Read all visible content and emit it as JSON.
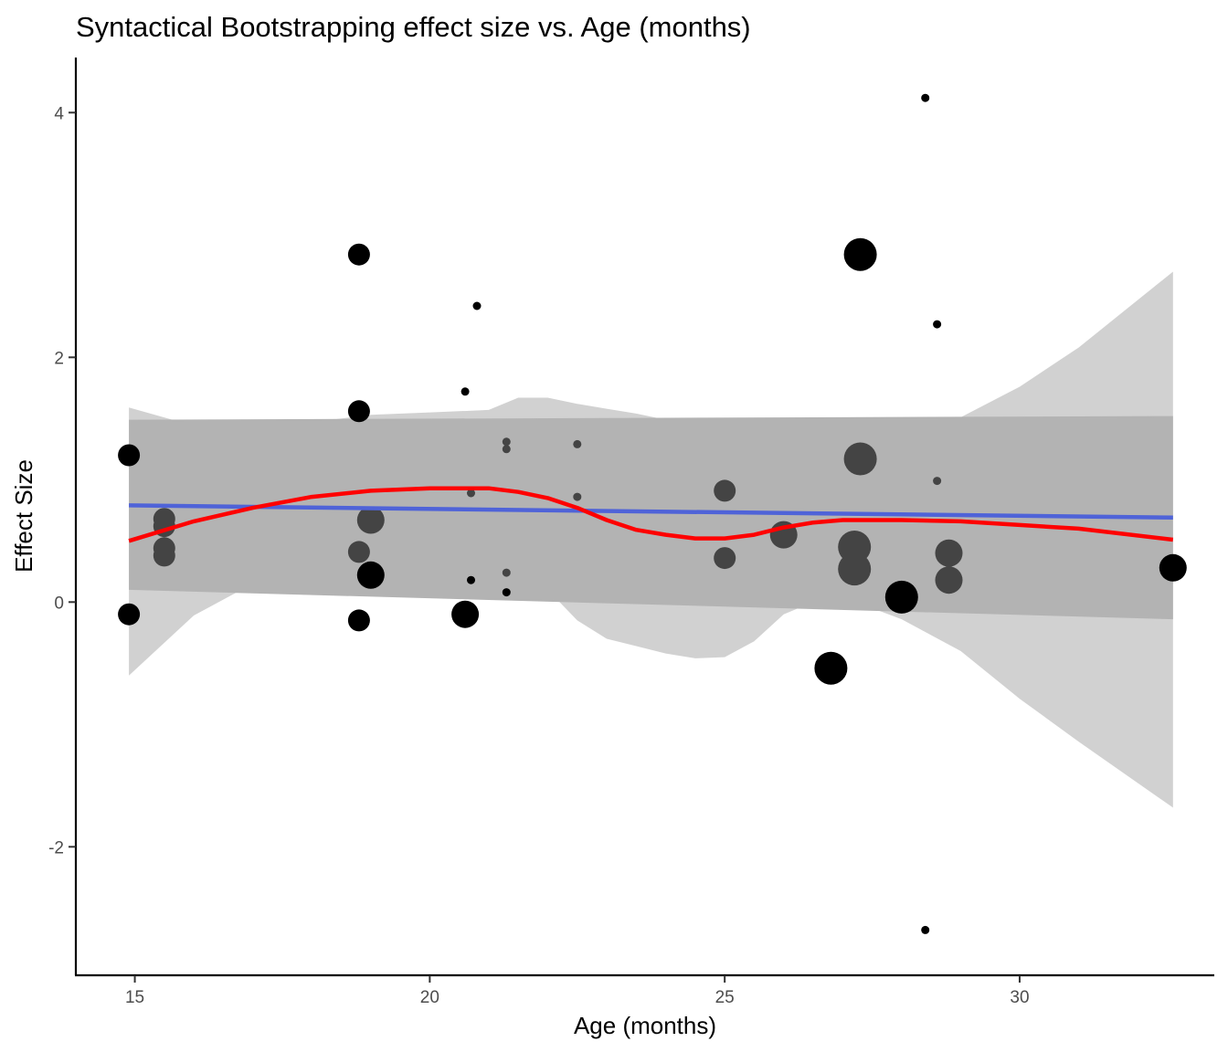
{
  "chart_data": {
    "type": "scatter",
    "title": "Syntactical Bootstrapping effect size vs. Age (months)",
    "xlabel": "Age (months)",
    "ylabel": "Effect Size",
    "xlim": [
      14,
      33.3
    ],
    "ylim": [
      -3.05,
      4.45
    ],
    "x_ticks": [
      15,
      20,
      25,
      30
    ],
    "y_ticks": [
      -2,
      0,
      2,
      4
    ],
    "grid": false,
    "points": [
      {
        "x": 14.9,
        "y": 1.2,
        "size": 3,
        "gray": false
      },
      {
        "x": 14.9,
        "y": -0.1,
        "size": 3,
        "gray": false
      },
      {
        "x": 15.5,
        "y": 0.68,
        "size": 3,
        "gray": true
      },
      {
        "x": 15.5,
        "y": 0.62,
        "size": 3,
        "gray": true
      },
      {
        "x": 15.5,
        "y": 0.44,
        "size": 3,
        "gray": true
      },
      {
        "x": 15.5,
        "y": 0.38,
        "size": 3,
        "gray": true
      },
      {
        "x": 18.8,
        "y": 2.84,
        "size": 3,
        "gray": false
      },
      {
        "x": 18.8,
        "y": 1.56,
        "size": 3,
        "gray": false
      },
      {
        "x": 18.8,
        "y": 0.41,
        "size": 3,
        "gray": true
      },
      {
        "x": 18.8,
        "y": -0.15,
        "size": 3,
        "gray": false
      },
      {
        "x": 19.0,
        "y": 0.67,
        "size": 4,
        "gray": true
      },
      {
        "x": 19.0,
        "y": 0.22,
        "size": 4,
        "gray": false
      },
      {
        "x": 20.6,
        "y": 1.72,
        "size": 1,
        "gray": false
      },
      {
        "x": 20.8,
        "y": 2.42,
        "size": 1,
        "gray": false
      },
      {
        "x": 20.7,
        "y": 0.89,
        "size": 1,
        "gray": true
      },
      {
        "x": 20.7,
        "y": 0.18,
        "size": 1,
        "gray": false
      },
      {
        "x": 20.6,
        "y": -0.1,
        "size": 4,
        "gray": false
      },
      {
        "x": 21.3,
        "y": 1.31,
        "size": 1,
        "gray": true
      },
      {
        "x": 21.3,
        "y": 1.25,
        "size": 1,
        "gray": true
      },
      {
        "x": 21.3,
        "y": 0.24,
        "size": 1,
        "gray": true
      },
      {
        "x": 21.3,
        "y": 0.08,
        "size": 1,
        "gray": false
      },
      {
        "x": 22.5,
        "y": 1.29,
        "size": 1,
        "gray": true
      },
      {
        "x": 22.5,
        "y": 0.86,
        "size": 1,
        "gray": true
      },
      {
        "x": 25.0,
        "y": 0.91,
        "size": 3,
        "gray": true
      },
      {
        "x": 25.0,
        "y": 0.36,
        "size": 3,
        "gray": true
      },
      {
        "x": 26.0,
        "y": 0.55,
        "size": 4,
        "gray": true
      },
      {
        "x": 26.8,
        "y": -0.54,
        "size": 5,
        "gray": false
      },
      {
        "x": 27.2,
        "y": 0.45,
        "size": 5,
        "gray": true
      },
      {
        "x": 27.2,
        "y": 0.27,
        "size": 5,
        "gray": true
      },
      {
        "x": 27.3,
        "y": 2.84,
        "size": 5,
        "gray": false
      },
      {
        "x": 27.3,
        "y": 1.17,
        "size": 5,
        "gray": true
      },
      {
        "x": 28.0,
        "y": 0.04,
        "size": 5,
        "gray": false
      },
      {
        "x": 28.4,
        "y": 4.12,
        "size": 1,
        "gray": false
      },
      {
        "x": 28.4,
        "y": -2.68,
        "size": 1,
        "gray": false
      },
      {
        "x": 28.6,
        "y": 2.27,
        "size": 1,
        "gray": false
      },
      {
        "x": 28.6,
        "y": 0.99,
        "size": 1,
        "gray": true
      },
      {
        "x": 28.8,
        "y": 0.4,
        "size": 4,
        "gray": true
      },
      {
        "x": 28.8,
        "y": 0.18,
        "size": 4,
        "gray": true
      },
      {
        "x": 32.6,
        "y": 0.28,
        "size": 4,
        "gray": false
      }
    ],
    "linear_fit": {
      "color": "#4f63d8",
      "x": [
        14.9,
        32.6
      ],
      "y": [
        0.79,
        0.69
      ],
      "ci_lower": [
        0.1,
        -0.14
      ],
      "ci_upper": [
        1.49,
        1.52
      ]
    },
    "loess_fit": {
      "color": "#ff0000",
      "x": [
        14.9,
        16.0,
        17.0,
        18.0,
        19.0,
        20.0,
        20.5,
        21.0,
        21.5,
        22.0,
        22.5,
        23.0,
        23.5,
        24.0,
        24.5,
        25.0,
        25.5,
        26.0,
        26.5,
        27.0,
        27.5,
        28.0,
        29.0,
        30.0,
        31.0,
        32.6
      ],
      "y": [
        0.5,
        0.66,
        0.77,
        0.86,
        0.91,
        0.93,
        0.93,
        0.93,
        0.9,
        0.85,
        0.77,
        0.67,
        0.59,
        0.55,
        0.52,
        0.52,
        0.55,
        0.61,
        0.65,
        0.67,
        0.67,
        0.67,
        0.66,
        0.63,
        0.6,
        0.51
      ],
      "ci_lower": [
        -0.6,
        -0.11,
        0.15,
        0.25,
        0.3,
        0.33,
        0.35,
        0.35,
        0.3,
        0.1,
        -0.15,
        -0.3,
        -0.36,
        -0.42,
        -0.46,
        -0.45,
        -0.32,
        -0.1,
        0.0,
        -0.01,
        -0.05,
        -0.14,
        -0.4,
        -0.79,
        -1.14,
        -1.68
      ],
      "ci_upper": [
        1.59,
        1.44,
        1.45,
        1.47,
        1.53,
        1.55,
        1.56,
        1.57,
        1.67,
        1.67,
        1.62,
        1.58,
        1.54,
        1.49,
        1.45,
        1.36,
        1.27,
        1.25,
        1.25,
        1.25,
        1.25,
        1.29,
        1.51,
        1.76,
        2.08,
        2.7
      ]
    }
  }
}
